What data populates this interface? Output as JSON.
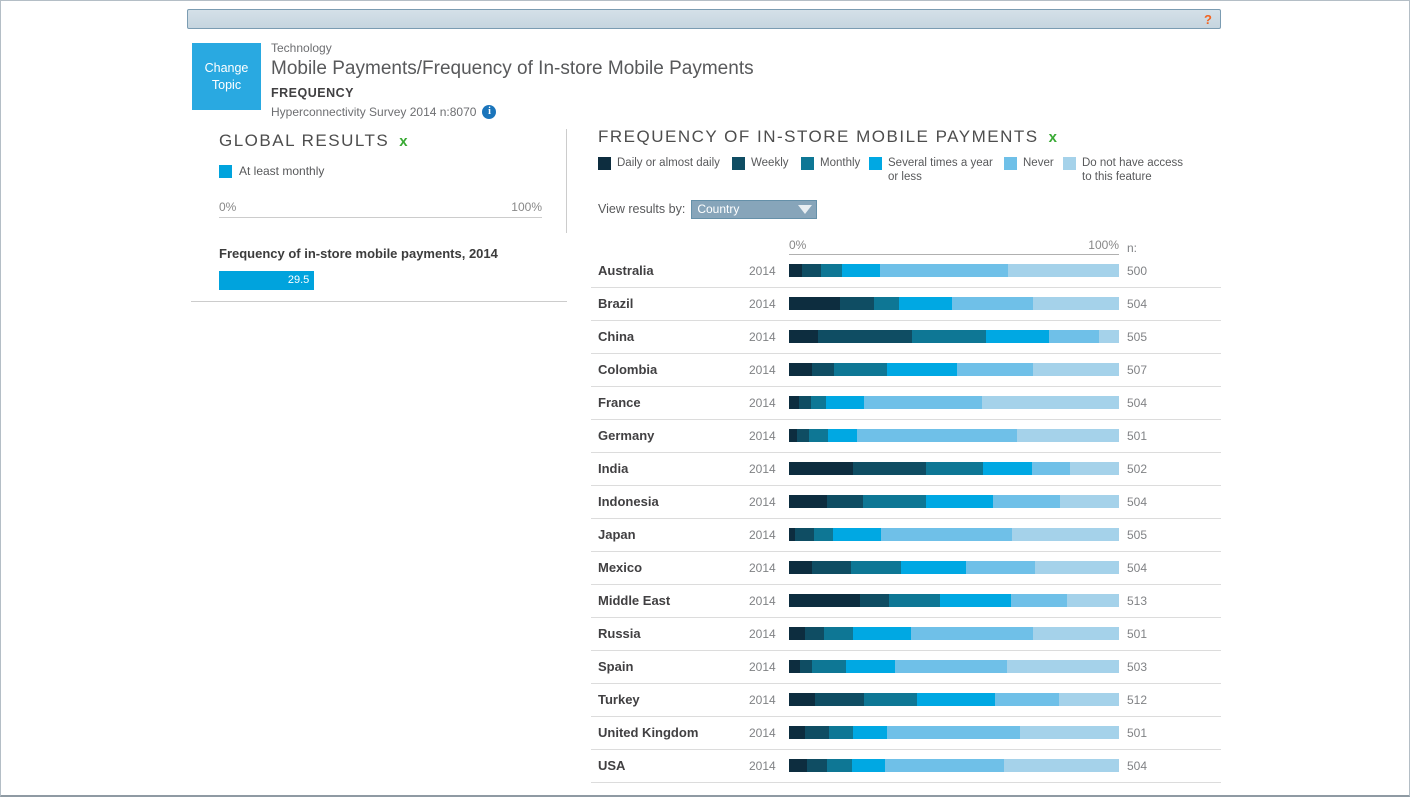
{
  "toolbar": {
    "help_label": "?"
  },
  "header": {
    "change_topic_label": "Change Topic",
    "category": "Technology",
    "title": "Mobile Payments/Frequency of In-store Mobile Payments",
    "subtitle": "FREQUENCY",
    "source": "Hyperconnectivity Survey 2014 n:8070",
    "info_icon": "i"
  },
  "global_results": {
    "title": "GLOBAL RESULTS",
    "close_label": "x",
    "legend_label": "At least monthly",
    "legend_color": "#00a3dd",
    "axis_min": "0%",
    "axis_max": "100%",
    "chart_title": "Frequency of in-store mobile payments, 2014",
    "value": 29.5,
    "bar_color": "#00a3dd"
  },
  "main_panel": {
    "title": "FREQUENCY OF IN-STORE MOBILE PAYMENTS",
    "close_label": "x",
    "view_by_label": "View results by:",
    "view_by_value": "Country",
    "axis_min": "0%",
    "axis_max": "100%",
    "n_label": "n:"
  },
  "chart_data": {
    "type": "bar",
    "orientation": "horizontal-stacked",
    "xlim": [
      0,
      100
    ],
    "legend_position": "top",
    "legend": [
      {
        "label": "Daily or almost daily",
        "color": "#0d2d3f"
      },
      {
        "label": "Weekly",
        "color": "#0f4d63"
      },
      {
        "label": "Monthly",
        "color": "#0e7795"
      },
      {
        "label": "Several times a year or less",
        "color": "#00a8e3"
      },
      {
        "label": "Never",
        "color": "#6fc0e8"
      },
      {
        "label": "Do not have access to this feature",
        "color": "#a5d2ea"
      }
    ],
    "rows": [
      {
        "country": "Australia",
        "year": "2014",
        "n": "500",
        "values": [
          4.0,
          5.6,
          6.6,
          11.3,
          38.9,
          33.6
        ]
      },
      {
        "country": "Brazil",
        "year": "2014",
        "n": "504",
        "values": [
          15.5,
          10.3,
          7.6,
          16.0,
          24.4,
          26.2
        ]
      },
      {
        "country": "China",
        "year": "2014",
        "n": "505",
        "values": [
          8.9,
          28.3,
          22.4,
          19.2,
          15.2,
          6.0
        ]
      },
      {
        "country": "Colombia",
        "year": "2014",
        "n": "507",
        "values": [
          6.9,
          6.8,
          16.0,
          21.2,
          22.9,
          26.2
        ]
      },
      {
        "country": "France",
        "year": "2014",
        "n": "504",
        "values": [
          3.0,
          3.8,
          4.5,
          11.3,
          35.9,
          41.5
        ]
      },
      {
        "country": "Germany",
        "year": "2014",
        "n": "501",
        "values": [
          2.3,
          3.7,
          5.9,
          8.6,
          48.7,
          30.8
        ]
      },
      {
        "country": "India",
        "year": "2014",
        "n": "502",
        "values": [
          19.5,
          21.9,
          17.5,
          14.8,
          11.4,
          14.9
        ]
      },
      {
        "country": "Indonesia",
        "year": "2014",
        "n": "504",
        "values": [
          11.6,
          10.9,
          18.9,
          20.5,
          20.2,
          17.9
        ]
      },
      {
        "country": "Japan",
        "year": "2014",
        "n": "505",
        "values": [
          1.8,
          5.8,
          5.6,
          14.6,
          39.7,
          32.5
        ]
      },
      {
        "country": "Mexico",
        "year": "2014",
        "n": "504",
        "values": [
          7.1,
          11.6,
          15.2,
          19.7,
          21.0,
          25.4
        ]
      },
      {
        "country": "Middle East",
        "year": "2014",
        "n": "513",
        "values": [
          21.5,
          8.8,
          15.5,
          21.4,
          17.0,
          15.8
        ]
      },
      {
        "country": "Russia",
        "year": "2014",
        "n": "501",
        "values": [
          4.8,
          5.8,
          8.9,
          17.4,
          36.9,
          26.2
        ]
      },
      {
        "country": "Spain",
        "year": "2014",
        "n": "503",
        "values": [
          3.3,
          3.7,
          10.4,
          14.6,
          34.0,
          34.0
        ]
      },
      {
        "country": "Turkey",
        "year": "2014",
        "n": "512",
        "values": [
          7.9,
          14.8,
          16.0,
          23.7,
          19.4,
          18.2
        ]
      },
      {
        "country": "United Kingdom",
        "year": "2014",
        "n": "501",
        "values": [
          4.8,
          7.3,
          7.4,
          10.3,
          40.2,
          30.0
        ]
      },
      {
        "country": "USA",
        "year": "2014",
        "n": "504",
        "values": [
          5.6,
          5.9,
          7.6,
          10.1,
          35.9,
          34.9
        ]
      }
    ]
  }
}
